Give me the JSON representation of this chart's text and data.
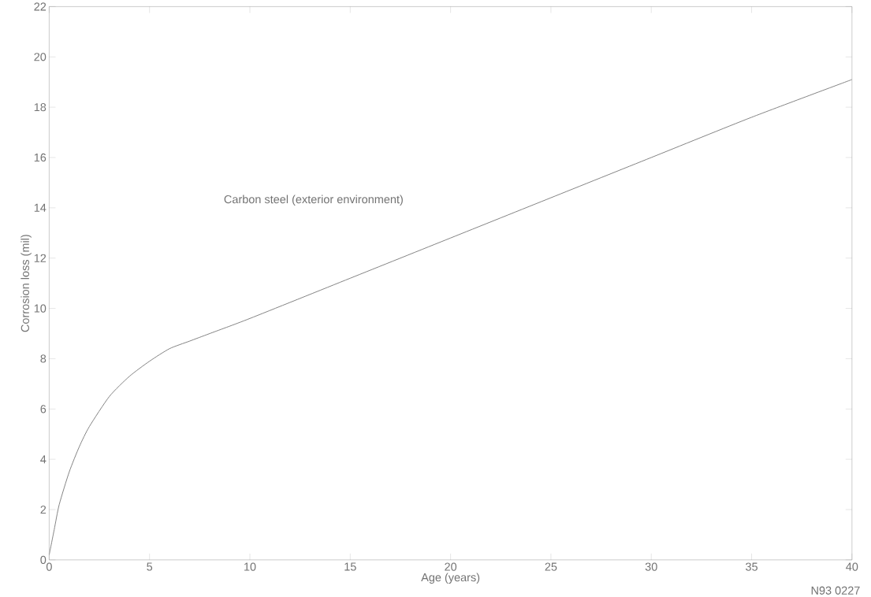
{
  "chart_data": {
    "type": "line",
    "xlabel": "Age (years)",
    "ylabel": "Corrosion loss (mil)",
    "annotations": [
      "Carbon steel (exterior environment)",
      "N93 0227"
    ],
    "x": [
      0,
      0.25,
      0.5,
      1,
      1.5,
      2,
      3,
      4,
      5,
      6,
      7,
      8,
      10,
      15,
      20,
      25,
      30,
      35,
      40
    ],
    "series": [
      {
        "color": "#777777",
        "values": [
          0.2,
          1.2,
          2.2,
          3.5,
          4.5,
          5.3,
          6.5,
          7.3,
          7.9,
          8.4,
          8.7,
          9.0,
          9.6,
          11.2,
          12.8,
          14.4,
          16.0,
          17.6,
          19.1
        ]
      }
    ],
    "xlim": [
      0,
      40
    ],
    "ylim": [
      0,
      22
    ],
    "xticks": [
      0,
      5,
      10,
      15,
      20,
      25,
      30,
      35,
      40
    ],
    "yticks": [
      0,
      2,
      4,
      6,
      8,
      10,
      12,
      14,
      16,
      18,
      20,
      22
    ],
    "grid": false,
    "marker": "none",
    "line_style": "solid"
  }
}
